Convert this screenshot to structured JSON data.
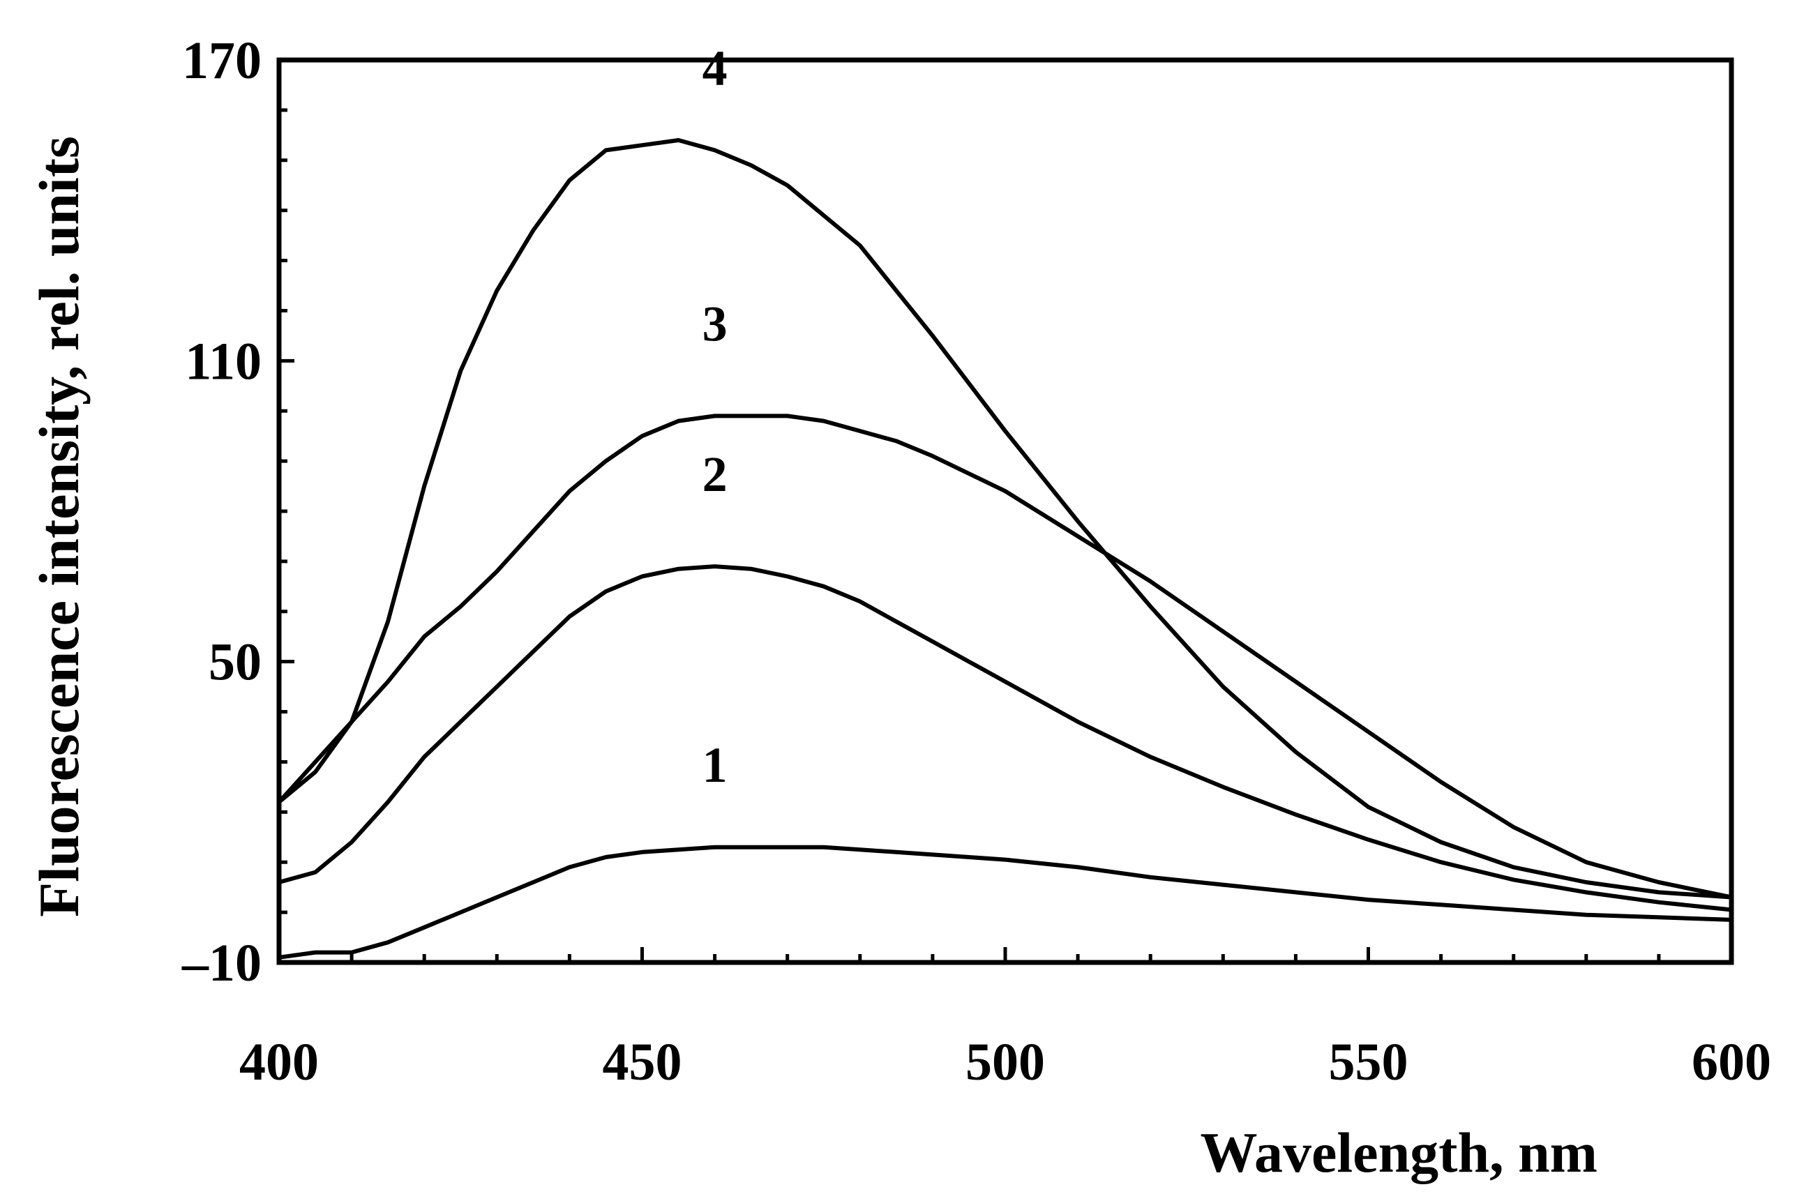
{
  "chart_data": {
    "type": "line",
    "title": "",
    "xlabel": "Wavelength, nm",
    "ylabel": "Fluorescence intensity, rel. units",
    "xlim": [
      400,
      600
    ],
    "ylim": [
      -10,
      170
    ],
    "xticks": [
      400,
      450,
      500,
      550,
      600
    ],
    "yticks": [
      -10,
      50,
      110,
      170
    ],
    "ytick_labels": [
      "–10",
      "50",
      "110",
      "170"
    ],
    "xtick_labels": [
      "400",
      "450",
      "500",
      "550",
      "600"
    ],
    "grid": false,
    "colors": {
      "line": "#000000",
      "background": "#ffffff"
    },
    "series": [
      {
        "name": "1",
        "label_at": [
          460,
          26
        ],
        "x": [
          400,
          405,
          410,
          415,
          420,
          425,
          430,
          435,
          440,
          445,
          450,
          455,
          460,
          465,
          470,
          475,
          480,
          485,
          490,
          500,
          510,
          520,
          530,
          540,
          550,
          560,
          570,
          580,
          590,
          600
        ],
        "y": [
          -9,
          -8,
          -8,
          -6,
          -3,
          0,
          3,
          6,
          9,
          11,
          12,
          12.5,
          13,
          13,
          13,
          13,
          12.5,
          12,
          11.5,
          10.5,
          9,
          7,
          5.5,
          4,
          2.5,
          1.5,
          0.5,
          -0.5,
          -1,
          -1.5
        ]
      },
      {
        "name": "2",
        "label_at": [
          460,
          84
        ],
        "x": [
          400,
          405,
          410,
          415,
          420,
          425,
          430,
          435,
          440,
          445,
          450,
          455,
          460,
          465,
          470,
          475,
          480,
          485,
          490,
          500,
          510,
          520,
          530,
          540,
          550,
          560,
          570,
          580,
          590,
          600
        ],
        "y": [
          6,
          8,
          14,
          22,
          31,
          38,
          45,
          52,
          59,
          64,
          67,
          68.5,
          69,
          68.5,
          67,
          65,
          62,
          58,
          54,
          46,
          38,
          31,
          25,
          19.5,
          14.5,
          10,
          6.5,
          4,
          2,
          0.5
        ]
      },
      {
        "name": "3",
        "label_at": [
          460,
          114
        ],
        "x": [
          400,
          405,
          410,
          415,
          420,
          425,
          430,
          435,
          440,
          445,
          450,
          455,
          460,
          465,
          470,
          475,
          480,
          485,
          490,
          500,
          510,
          520,
          530,
          540,
          550,
          560,
          570,
          580,
          590,
          600
        ],
        "y": [
          22,
          30,
          38,
          46,
          55,
          61,
          68,
          76,
          84,
          90,
          95,
          98,
          99,
          99,
          99,
          98,
          96,
          94,
          91,
          84,
          75,
          66,
          56,
          46,
          36,
          26,
          17,
          10,
          6,
          3
        ]
      },
      {
        "name": "4",
        "label_at": [
          460,
          165
        ],
        "x": [
          400,
          405,
          410,
          415,
          420,
          425,
          430,
          435,
          440,
          445,
          450,
          455,
          460,
          465,
          470,
          475,
          480,
          485,
          490,
          500,
          510,
          520,
          530,
          540,
          550,
          560,
          570,
          580,
          590,
          600
        ],
        "y": [
          22,
          28,
          38,
          58,
          85,
          108,
          124,
          136,
          146,
          152,
          153,
          154,
          152,
          149,
          145,
          139,
          133,
          124,
          115,
          96,
          78,
          61,
          45,
          32,
          21,
          14,
          9,
          6,
          4,
          3
        ]
      }
    ]
  }
}
